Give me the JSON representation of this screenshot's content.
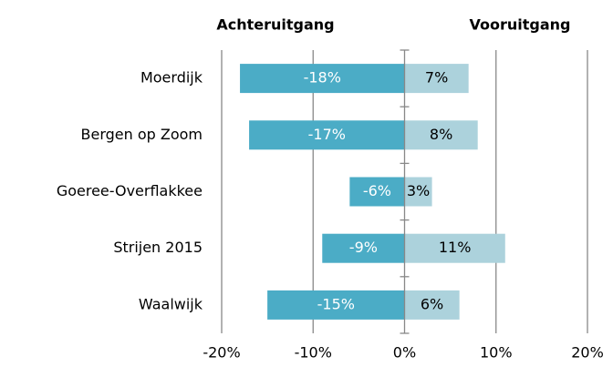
{
  "chart_data": {
    "type": "bar",
    "orientation": "horizontal",
    "stacked": "diverging",
    "categories": [
      "Moerdijk",
      "Bergen op Zoom",
      "Goeree-Overflakkee",
      "Strijen 2015",
      "Waalwijk"
    ],
    "series": [
      {
        "name": "Achteruitgang",
        "color": "#4bacc6",
        "values": [
          -18,
          -17,
          -6,
          -9,
          -15
        ],
        "value_labels": [
          "-18%",
          "-17%",
          "-6%",
          "-9%",
          "-15%"
        ]
      },
      {
        "name": "Vooruitgang",
        "color": "#acd2dc",
        "values": [
          7,
          8,
          3,
          11,
          6
        ],
        "value_labels": [
          "7%",
          "8%",
          "3%",
          "11%",
          "6%"
        ]
      }
    ],
    "xlim": [
      -20,
      20
    ],
    "xticks": [
      {
        "value": -20,
        "label": "-20%"
      },
      {
        "value": -10,
        "label": "-10%"
      },
      {
        "value": 0,
        "label": "0%"
      },
      {
        "value": 10,
        "label": "10%"
      },
      {
        "value": 20,
        "label": "20%"
      }
    ],
    "grid": true
  }
}
